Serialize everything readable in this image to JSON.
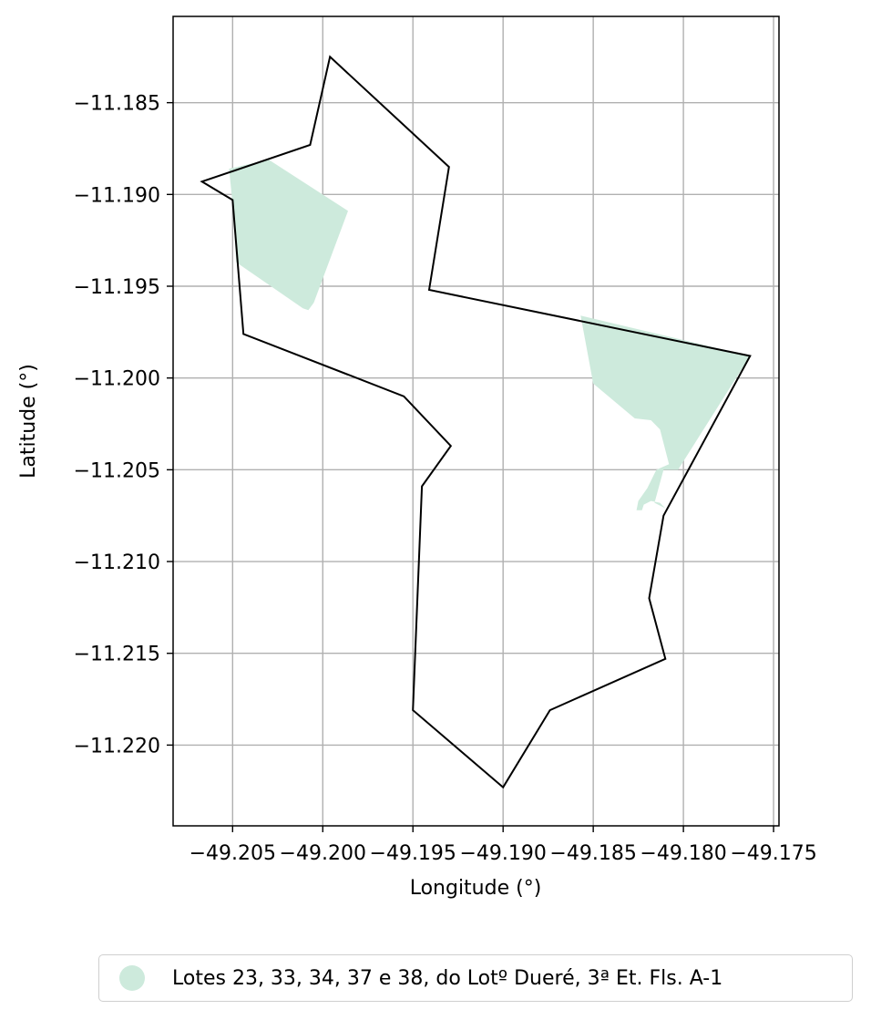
{
  "chart_data": {
    "type": "map",
    "xlabel": "Longitude (°)",
    "ylabel": "Latitude (°)",
    "xlim": [
      -49.2083,
      -49.1747
    ],
    "ylim": [
      -11.2244,
      -11.1803
    ],
    "x_ticks": [
      -49.205,
      -49.2,
      -49.195,
      -49.19,
      -49.185,
      -49.18,
      -49.175
    ],
    "x_tick_labels": [
      "−49.205",
      "−49.200",
      "−49.195",
      "−49.190",
      "−49.185",
      "−49.180",
      "−49.175"
    ],
    "y_ticks": [
      -11.185,
      -11.19,
      -11.195,
      -11.2,
      -11.205,
      -11.21,
      -11.215,
      -11.22
    ],
    "y_tick_labels": [
      "−11.185",
      "−11.190",
      "−11.195",
      "−11.200",
      "−11.205",
      "−11.210",
      "−11.215",
      "−11.220"
    ],
    "grid": true,
    "legend_position": "bottom",
    "boundary": {
      "color": "#000000",
      "points": [
        [
          -49.2067,
          -11.1893
        ],
        [
          -49.2007,
          -11.1873
        ],
        [
          -49.1996,
          -11.1825
        ],
        [
          -49.193,
          -11.1885
        ],
        [
          -49.1941,
          -11.1952
        ],
        [
          -49.1763,
          -11.1988
        ],
        [
          -49.1811,
          -11.2075
        ],
        [
          -49.1819,
          -11.212
        ],
        [
          -49.181,
          -11.2153
        ],
        [
          -49.1874,
          -11.2181
        ],
        [
          -49.19,
          -11.2223
        ],
        [
          -49.195,
          -11.2181
        ],
        [
          -49.1945,
          -11.2059
        ],
        [
          -49.1929,
          -11.2037
        ],
        [
          -49.1955,
          -11.201
        ],
        [
          -49.2044,
          -11.1976
        ],
        [
          -49.205,
          -11.1903
        ]
      ]
    },
    "series": [
      {
        "name": "Lotes 23, 33, 34, 37 e 38, do Lotº Dueré, 3ª Et. Fls. A-1",
        "color": "#cdeadc",
        "polygons": [
          [
            [
              -49.2052,
              -11.1886
            ],
            [
              -49.203,
              -11.1881
            ],
            [
              -49.1986,
              -11.1909
            ],
            [
              -49.2005,
              -11.1959
            ],
            [
              -49.2008,
              -11.1963
            ],
            [
              -49.2011,
              -11.1962
            ],
            [
              -49.2048,
              -11.1937
            ],
            [
              -49.205,
              -11.1905
            ]
          ],
          [
            [
              -49.1857,
              -11.1966
            ],
            [
              -49.1763,
              -11.1988
            ],
            [
              -49.1803,
              -11.205
            ],
            [
              -49.1811,
              -11.205
            ],
            [
              -49.1816,
              -11.2068
            ],
            [
              -49.181,
              -11.2071
            ],
            [
              -49.1813,
              -11.2068
            ],
            [
              -49.1818,
              -11.2067
            ],
            [
              -49.1822,
              -11.2069
            ],
            [
              -49.1823,
              -11.2072
            ],
            [
              -49.1826,
              -11.2072
            ],
            [
              -49.1825,
              -11.2067
            ],
            [
              -49.182,
              -11.206
            ],
            [
              -49.1815,
              -11.205
            ],
            [
              -49.1808,
              -11.2047
            ],
            [
              -49.1813,
              -11.2028
            ],
            [
              -49.1818,
              -11.2023
            ],
            [
              -49.1827,
              -11.2022
            ],
            [
              -49.185,
              -11.2003
            ]
          ]
        ]
      }
    ]
  }
}
